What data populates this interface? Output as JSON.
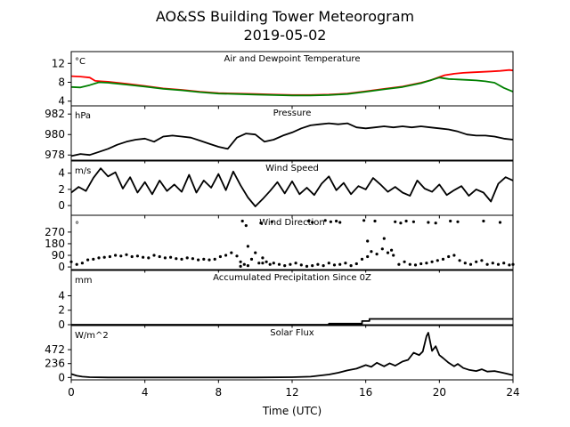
{
  "figure": {
    "title": "AO&SS Building Tower Meteorogram",
    "subtitle": "2019-05-02",
    "xlabel": "Time (UTC)",
    "xticks": [
      0,
      4,
      8,
      12,
      16,
      20,
      24
    ],
    "xlim": [
      0,
      24
    ]
  },
  "chart_data": [
    {
      "type": "line",
      "name": "temperature",
      "title": "Air and Dewpoint Temperature",
      "ylabel": "°C",
      "ylim": [
        3,
        14.5
      ],
      "yticks": [
        4,
        8,
        12
      ],
      "series": [
        {
          "name": "air",
          "color": "#ff0000",
          "x": [
            0,
            0.5,
            1,
            1.3,
            1.6,
            2,
            3,
            4,
            5,
            6,
            7,
            8,
            9,
            10,
            11,
            12,
            13,
            14,
            15,
            16,
            17,
            18,
            19,
            19.5,
            20,
            20.3,
            20.8,
            21.3,
            21.8,
            22.3,
            22.8,
            23.3,
            23.8,
            24
          ],
          "values": [
            9.3,
            9.2,
            9.0,
            8.3,
            8.2,
            8.1,
            7.7,
            7.2,
            6.7,
            6.4,
            6.0,
            5.7,
            5.6,
            5.5,
            5.4,
            5.3,
            5.3,
            5.4,
            5.6,
            6.1,
            6.6,
            7.1,
            7.9,
            8.4,
            9.1,
            9.5,
            9.8,
            10.0,
            10.1,
            10.2,
            10.3,
            10.4,
            10.6,
            10.5
          ]
        },
        {
          "name": "dewpoint",
          "color": "#008000",
          "x": [
            0,
            0.5,
            1,
            1.5,
            2,
            3,
            4,
            5,
            6,
            7,
            8,
            9,
            10,
            11,
            12,
            13,
            14,
            15,
            16,
            17,
            18,
            19,
            19.5,
            20,
            20.5,
            21,
            21.5,
            22,
            22.5,
            23,
            23.5,
            24
          ],
          "values": [
            7.0,
            6.9,
            7.4,
            8.0,
            7.9,
            7.5,
            7.1,
            6.6,
            6.3,
            5.9,
            5.6,
            5.5,
            5.4,
            5.3,
            5.2,
            5.2,
            5.3,
            5.5,
            6.0,
            6.5,
            7.0,
            7.8,
            8.4,
            9.0,
            8.7,
            8.6,
            8.5,
            8.4,
            8.2,
            7.9,
            6.8,
            6.0
          ]
        }
      ]
    },
    {
      "type": "line",
      "name": "pressure",
      "title": "Pressure",
      "ylabel": "hPa",
      "ylim": [
        977.5,
        982.8
      ],
      "yticks": [
        978,
        980,
        982
      ],
      "series": [
        {
          "name": "pressure",
          "color": "#000000",
          "x": [
            0,
            0.5,
            1,
            1.5,
            2,
            2.5,
            3,
            3.5,
            4,
            4.5,
            5,
            5.5,
            6,
            6.5,
            7,
            7.5,
            8,
            8.5,
            9,
            9.5,
            10,
            10.5,
            11,
            11.5,
            12,
            12.5,
            13,
            13.5,
            14,
            14.5,
            15,
            15.5,
            16,
            16.5,
            17,
            17.5,
            18,
            18.5,
            19,
            19.5,
            20,
            20.5,
            21,
            21.5,
            22,
            22.5,
            23,
            23.5,
            24
          ],
          "values": [
            977.9,
            978.1,
            978.0,
            978.3,
            978.6,
            979.0,
            979.3,
            979.5,
            979.6,
            979.3,
            979.8,
            979.9,
            979.8,
            979.7,
            979.4,
            979.1,
            978.8,
            978.6,
            979.7,
            980.1,
            980.0,
            979.3,
            979.5,
            979.9,
            980.2,
            980.6,
            980.9,
            981.0,
            981.1,
            981.0,
            981.1,
            980.7,
            980.6,
            980.7,
            980.8,
            980.7,
            980.8,
            980.7,
            980.8,
            980.7,
            980.6,
            980.5,
            980.3,
            980.0,
            979.9,
            979.9,
            979.8,
            979.6,
            979.5
          ]
        }
      ]
    },
    {
      "type": "line",
      "name": "wind-speed",
      "title": "Wind Speed",
      "ylabel": "m/s",
      "ylim": [
        -1.2,
        5.5
      ],
      "yticks": [
        0,
        2,
        4
      ],
      "series": [
        {
          "name": "speed",
          "color": "#000000",
          "x": [
            0,
            0.4,
            0.8,
            1.2,
            1.6,
            2,
            2.4,
            2.8,
            3.2,
            3.6,
            4,
            4.4,
            4.8,
            5.2,
            5.6,
            6,
            6.4,
            6.8,
            7.2,
            7.6,
            8,
            8.4,
            8.8,
            9.2,
            9.6,
            10,
            10.4,
            10.8,
            11.2,
            11.6,
            12,
            12.4,
            12.8,
            13.2,
            13.6,
            14,
            14.4,
            14.8,
            15.2,
            15.6,
            16,
            16.4,
            16.8,
            17.2,
            17.6,
            18,
            18.4,
            18.8,
            19.2,
            19.6,
            20,
            20.4,
            20.8,
            21.2,
            21.6,
            22,
            22.4,
            22.8,
            23.2,
            23.6,
            24
          ],
          "values": [
            1.6,
            2.3,
            1.8,
            3.4,
            4.6,
            3.6,
            4.1,
            2.1,
            3.5,
            1.6,
            2.9,
            1.4,
            3.1,
            1.8,
            2.6,
            1.7,
            3.8,
            1.6,
            3.1,
            2.2,
            3.9,
            1.9,
            4.2,
            2.5,
            1.0,
            -0.1,
            0.8,
            1.8,
            2.9,
            1.5,
            3.0,
            1.4,
            2.2,
            1.3,
            2.7,
            3.6,
            1.9,
            2.8,
            1.4,
            2.4,
            2.0,
            3.4,
            2.6,
            1.7,
            2.3,
            1.6,
            1.2,
            3.1,
            2.1,
            1.7,
            2.6,
            1.3,
            1.9,
            2.4,
            1.2,
            2.0,
            1.6,
            0.5,
            2.7,
            3.5,
            3.1
          ]
        }
      ]
    },
    {
      "type": "scatter",
      "name": "wind-direction",
      "title": "Wind Direction",
      "ylabel": "°",
      "ylim": [
        -20,
        400
      ],
      "yticks": [
        0,
        90,
        180,
        270
      ],
      "series": [
        {
          "name": "direction",
          "color": "#000000",
          "x": [
            0,
            0.3,
            0.6,
            0.9,
            1.2,
            1.5,
            1.8,
            2.1,
            2.4,
            2.7,
            3.0,
            3.3,
            3.6,
            3.9,
            4.2,
            4.5,
            4.8,
            5.1,
            5.4,
            5.7,
            6.0,
            6.3,
            6.6,
            6.9,
            7.2,
            7.5,
            7.8,
            8.1,
            8.4,
            8.7,
            9.0,
            9.2,
            9.4,
            9.6,
            9.8,
            10.0,
            10.2,
            10.4,
            10.6,
            10.8,
            11.0,
            11.3,
            11.6,
            11.9,
            12.2,
            12.5,
            12.8,
            13.1,
            13.4,
            13.7,
            14.0,
            14.3,
            14.6,
            14.9,
            15.2,
            15.5,
            15.8,
            16.1,
            16.3,
            16.6,
            16.9,
            17.2,
            17.5,
            17.8,
            18.1,
            18.4,
            18.7,
            19.0,
            19.3,
            19.6,
            19.9,
            20.2,
            20.5,
            20.8,
            21.1,
            21.4,
            21.7,
            22.0,
            22.3,
            22.6,
            22.9,
            23.2,
            23.5,
            23.8,
            24.0,
            9.3,
            9.5,
            10.3,
            10.9,
            12.9,
            13.1,
            13.8,
            14.1,
            14.4,
            14.6,
            15.9,
            16.5,
            17.6,
            17.9,
            18.2,
            18.6,
            19.4,
            19.8,
            20.6,
            21.0,
            22.4,
            23.3,
            10.4,
            9.2,
            16.1,
            17.0,
            17.4,
            9.6
          ],
          "values": [
            40,
            20,
            30,
            55,
            60,
            70,
            75,
            80,
            90,
            85,
            95,
            80,
            85,
            75,
            70,
            90,
            80,
            70,
            75,
            65,
            60,
            70,
            65,
            55,
            60,
            55,
            60,
            80,
            90,
            110,
            85,
            40,
            20,
            10,
            60,
            110,
            30,
            70,
            40,
            20,
            30,
            20,
            10,
            20,
            30,
            15,
            5,
            10,
            20,
            10,
            30,
            15,
            20,
            30,
            10,
            25,
            60,
            80,
            120,
            100,
            140,
            110,
            90,
            20,
            40,
            20,
            15,
            25,
            30,
            40,
            50,
            60,
            80,
            90,
            50,
            30,
            20,
            40,
            50,
            20,
            30,
            20,
            30,
            15,
            20,
            355,
            320,
            340,
            350,
            355,
            345,
            360,
            350,
            355,
            345,
            360,
            355,
            350,
            340,
            355,
            350,
            345,
            340,
            355,
            350,
            355,
            345,
            30,
            5,
            200,
            220,
            130,
            160
          ]
        }
      ]
    },
    {
      "type": "line",
      "name": "precipitation",
      "title": "Accumulated Precipitation Since 0Z",
      "ylabel": "mm",
      "ylim": [
        0,
        7.5
      ],
      "yticks": [
        0,
        2,
        4
      ],
      "series": [
        {
          "name": "precip",
          "color": "#000000",
          "x": [
            0,
            14.0,
            14.0,
            15.8,
            15.8,
            16.2,
            16.2,
            24
          ],
          "values": [
            0,
            0,
            0.15,
            0.15,
            0.5,
            0.5,
            0.8,
            0.8
          ]
        }
      ]
    },
    {
      "type": "line",
      "name": "solar-flux",
      "title": "Solar Flux",
      "ylabel": "W/m^2",
      "ylim": [
        -40,
        880
      ],
      "yticks": [
        0,
        236,
        472
      ],
      "series": [
        {
          "name": "solar",
          "color": "#000000",
          "x": [
            0,
            0.3,
            0.6,
            1,
            2,
            4,
            6,
            8,
            10,
            12,
            13,
            14,
            14.5,
            15,
            15.5,
            16,
            16.3,
            16.6,
            17,
            17.3,
            17.6,
            18,
            18.3,
            18.6,
            18.9,
            19.1,
            19.3,
            19.4,
            19.6,
            19.8,
            20,
            20.2,
            20.5,
            20.8,
            21,
            21.3,
            21.6,
            22,
            22.3,
            22.6,
            23,
            23.3,
            23.6,
            24
          ],
          "values": [
            60,
            30,
            15,
            5,
            0,
            0,
            0,
            0,
            0,
            5,
            15,
            50,
            80,
            120,
            150,
            210,
            180,
            250,
            190,
            240,
            200,
            270,
            300,
            420,
            380,
            440,
            700,
            760,
            450,
            530,
            380,
            330,
            250,
            190,
            230,
            160,
            130,
            110,
            140,
            100,
            110,
            90,
            70,
            40
          ]
        }
      ]
    }
  ]
}
